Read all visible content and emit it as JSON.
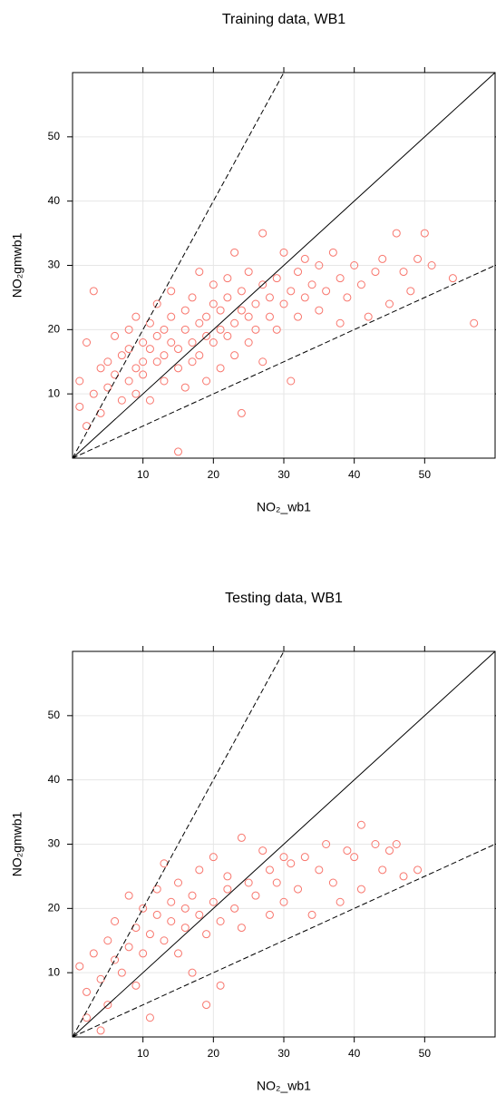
{
  "chart_data": [
    {
      "type": "scatter",
      "title": "Training data, WB1",
      "x_label": "NO₂_wb1",
      "y_label": "NO₂gmwb1",
      "x": [
        3,
        2,
        1,
        1,
        2,
        3,
        4,
        4,
        5,
        5,
        6,
        6,
        7,
        7,
        8,
        8,
        8,
        9,
        9,
        9,
        10,
        10,
        10,
        11,
        11,
        11,
        12,
        12,
        12,
        13,
        13,
        13,
        14,
        14,
        14,
        15,
        15,
        15,
        16,
        16,
        16,
        17,
        17,
        17,
        18,
        18,
        18,
        19,
        19,
        19,
        20,
        20,
        20,
        21,
        21,
        21,
        22,
        22,
        22,
        23,
        23,
        23,
        24,
        24,
        24,
        25,
        25,
        25,
        26,
        26,
        27,
        27,
        27,
        28,
        28,
        29,
        29,
        30,
        30,
        31,
        31,
        32,
        32,
        33,
        33,
        34,
        35,
        35,
        36,
        37,
        38,
        38,
        39,
        40,
        41,
        42,
        43,
        44,
        45,
        46,
        47,
        48,
        49,
        50,
        51,
        54,
        57
      ],
      "values": [
        26,
        18,
        12,
        8,
        5,
        10,
        14,
        7,
        15,
        11,
        19,
        13,
        9,
        16,
        20,
        12,
        17,
        14,
        22,
        10,
        18,
        15,
        13,
        21,
        17,
        9,
        19,
        24,
        15,
        16,
        20,
        12,
        18,
        22,
        26,
        17,
        14,
        1,
        20,
        23,
        11,
        18,
        25,
        15,
        21,
        29,
        16,
        22,
        19,
        12,
        24,
        18,
        27,
        20,
        23,
        14,
        25,
        19,
        28,
        21,
        32,
        16,
        23,
        26,
        7,
        22,
        29,
        18,
        24,
        20,
        35,
        27,
        15,
        22,
        25,
        28,
        20,
        32,
        24,
        26,
        12,
        29,
        22,
        25,
        31,
        27,
        23,
        30,
        26,
        32,
        28,
        21,
        25,
        30,
        27,
        22,
        29,
        31,
        24,
        35,
        29,
        26,
        31,
        35,
        30,
        28,
        21
      ],
      "color": "#f8766d",
      "xlim": [
        0,
        60
      ],
      "ylim": [
        0,
        60
      ],
      "xticks": [
        10,
        20,
        30,
        40,
        50
      ],
      "yticks": [
        10,
        20,
        30,
        40,
        50
      ],
      "grid": true,
      "reference_lines": [
        {
          "slope": 1,
          "style": "solid"
        },
        {
          "slope": 2,
          "style": "dashed"
        },
        {
          "slope": 0.5,
          "style": "dashed"
        }
      ]
    },
    {
      "type": "scatter",
      "title": "Testing data, WB1",
      "x_label": "NO₂_wb1",
      "y_label": "NO₂gmwb1",
      "x": [
        1,
        2,
        2,
        3,
        4,
        4,
        5,
        5,
        6,
        6,
        7,
        8,
        8,
        9,
        9,
        10,
        10,
        11,
        11,
        12,
        12,
        13,
        13,
        14,
        14,
        15,
        15,
        16,
        16,
        17,
        17,
        18,
        18,
        19,
        19,
        20,
        20,
        21,
        21,
        22,
        22,
        23,
        24,
        24,
        25,
        26,
        27,
        28,
        28,
        29,
        30,
        30,
        31,
        32,
        33,
        34,
        35,
        36,
        37,
        38,
        39,
        40,
        41,
        41,
        43,
        44,
        45,
        46,
        47,
        49
      ],
      "values": [
        11,
        7,
        3,
        13,
        1,
        9,
        15,
        5,
        12,
        18,
        10,
        22,
        14,
        17,
        8,
        20,
        13,
        16,
        3,
        19,
        23,
        15,
        27,
        18,
        21,
        13,
        24,
        17,
        20,
        22,
        10,
        19,
        26,
        16,
        5,
        21,
        28,
        18,
        8,
        23,
        25,
        20,
        31,
        17,
        24,
        22,
        29,
        19,
        26,
        24,
        28,
        21,
        27,
        23,
        28,
        19,
        26,
        30,
        24,
        21,
        29,
        28,
        33,
        23,
        30,
        26,
        29,
        30,
        25,
        26
      ],
      "color": "#f8766d",
      "xlim": [
        0,
        60
      ],
      "ylim": [
        0,
        60
      ],
      "xticks": [
        10,
        20,
        30,
        40,
        50
      ],
      "yticks": [
        10,
        20,
        30,
        40,
        50
      ],
      "grid": true,
      "reference_lines": [
        {
          "slope": 1,
          "style": "solid"
        },
        {
          "slope": 2,
          "style": "dashed"
        },
        {
          "slope": 0.5,
          "style": "dashed"
        }
      ]
    }
  ]
}
